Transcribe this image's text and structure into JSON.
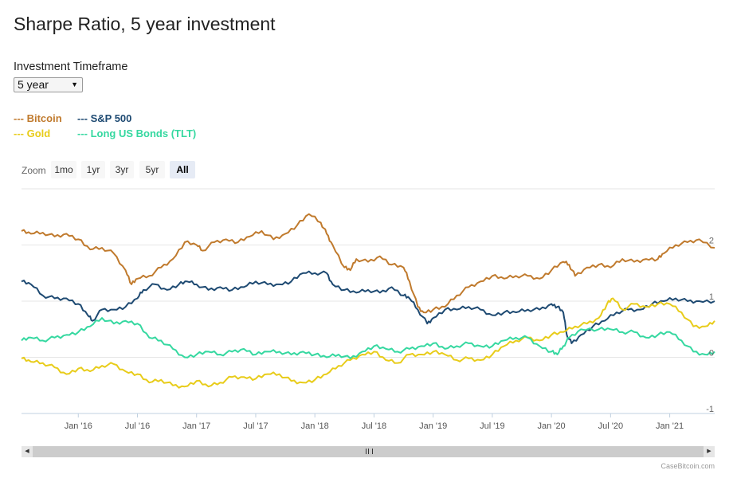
{
  "title": "Sharpe Ratio, 5 year investment",
  "timeframe": {
    "label": "Investment Timeframe",
    "selected": "5 year"
  },
  "legend": [
    {
      "label": "--- Bitcoin",
      "color": "#c07a2d"
    },
    {
      "label": "--- S&P 500",
      "color": "#1e4a72"
    },
    {
      "label": "--- Gold",
      "color": "#e8cc1a"
    },
    {
      "label": "--- Long US Bonds (TLT)",
      "color": "#35d8a0"
    }
  ],
  "zoom": {
    "label": "Zoom",
    "buttons": [
      "1mo",
      "1yr",
      "3yr",
      "5yr",
      "All"
    ],
    "active": "All"
  },
  "credit": "CaseBitcoin.com",
  "chart_data": {
    "type": "line",
    "title": "Sharpe Ratio, 5 year investment",
    "xlabel": "",
    "ylabel": "",
    "xlim": [
      2015.52,
      2021.38
    ],
    "ylim": [
      -1,
      3
    ],
    "y_ticks": [
      -1,
      0,
      1,
      2
    ],
    "x_ticks": [
      {
        "label": "Jan '16",
        "x": 2016.0
      },
      {
        "label": "Jul '16",
        "x": 2016.5
      },
      {
        "label": "Jan '17",
        "x": 2017.0
      },
      {
        "label": "Jul '17",
        "x": 2017.5
      },
      {
        "label": "Jan '18",
        "x": 2018.0
      },
      {
        "label": "Jul '18",
        "x": 2018.5
      },
      {
        "label": "Jan '19",
        "x": 2019.0
      },
      {
        "label": "Jul '19",
        "x": 2019.5
      },
      {
        "label": "Jan '20",
        "x": 2020.0
      },
      {
        "label": "Jul '20",
        "x": 2020.5
      },
      {
        "label": "Jan '21",
        "x": 2021.0
      }
    ],
    "series": [
      {
        "name": "Bitcoin",
        "color": "#c07a2d",
        "points": [
          [
            2015.52,
            2.25
          ],
          [
            2015.6,
            2.2
          ],
          [
            2015.7,
            2.22
          ],
          [
            2015.8,
            2.15
          ],
          [
            2015.9,
            2.2
          ],
          [
            2016.0,
            2.1
          ],
          [
            2016.1,
            1.92
          ],
          [
            2016.2,
            1.95
          ],
          [
            2016.3,
            1.85
          ],
          [
            2016.4,
            1.55
          ],
          [
            2016.45,
            1.3
          ],
          [
            2016.5,
            1.4
          ],
          [
            2016.6,
            1.45
          ],
          [
            2016.7,
            1.6
          ],
          [
            2016.8,
            1.75
          ],
          [
            2016.9,
            2.05
          ],
          [
            2017.0,
            2.0
          ],
          [
            2017.05,
            1.9
          ],
          [
            2017.15,
            2.05
          ],
          [
            2017.25,
            2.1
          ],
          [
            2017.35,
            2.05
          ],
          [
            2017.45,
            2.15
          ],
          [
            2017.55,
            2.25
          ],
          [
            2017.65,
            2.1
          ],
          [
            2017.75,
            2.2
          ],
          [
            2017.85,
            2.35
          ],
          [
            2017.95,
            2.55
          ],
          [
            2018.05,
            2.4
          ],
          [
            2018.1,
            2.2
          ],
          [
            2018.15,
            2.0
          ],
          [
            2018.25,
            1.6
          ],
          [
            2018.3,
            1.55
          ],
          [
            2018.35,
            1.75
          ],
          [
            2018.45,
            1.7
          ],
          [
            2018.55,
            1.8
          ],
          [
            2018.65,
            1.65
          ],
          [
            2018.75,
            1.6
          ],
          [
            2018.8,
            1.35
          ],
          [
            2018.87,
            0.9
          ],
          [
            2018.92,
            0.8
          ],
          [
            2019.0,
            0.85
          ],
          [
            2019.1,
            0.9
          ],
          [
            2019.2,
            1.1
          ],
          [
            2019.3,
            1.25
          ],
          [
            2019.4,
            1.35
          ],
          [
            2019.5,
            1.45
          ],
          [
            2019.6,
            1.4
          ],
          [
            2019.7,
            1.45
          ],
          [
            2019.8,
            1.45
          ],
          [
            2019.9,
            1.4
          ],
          [
            2020.0,
            1.55
          ],
          [
            2020.1,
            1.7
          ],
          [
            2020.15,
            1.65
          ],
          [
            2020.2,
            1.45
          ],
          [
            2020.3,
            1.6
          ],
          [
            2020.4,
            1.65
          ],
          [
            2020.5,
            1.6
          ],
          [
            2020.6,
            1.75
          ],
          [
            2020.7,
            1.7
          ],
          [
            2020.8,
            1.75
          ],
          [
            2020.9,
            1.75
          ],
          [
            2020.95,
            1.85
          ],
          [
            2021.05,
            2.0
          ],
          [
            2021.15,
            2.05
          ],
          [
            2021.25,
            2.1
          ],
          [
            2021.38,
            1.95
          ]
        ]
      },
      {
        "name": "S&P 500",
        "color": "#1e4a72",
        "points": [
          [
            2015.52,
            1.35
          ],
          [
            2015.6,
            1.3
          ],
          [
            2015.7,
            1.1
          ],
          [
            2015.8,
            1.05
          ],
          [
            2015.9,
            1.05
          ],
          [
            2016.0,
            0.95
          ],
          [
            2016.08,
            0.75
          ],
          [
            2016.12,
            0.65
          ],
          [
            2016.2,
            0.85
          ],
          [
            2016.3,
            0.85
          ],
          [
            2016.4,
            0.9
          ],
          [
            2016.5,
            1.05
          ],
          [
            2016.55,
            1.2
          ],
          [
            2016.65,
            1.3
          ],
          [
            2016.75,
            1.2
          ],
          [
            2016.85,
            1.3
          ],
          [
            2016.92,
            1.35
          ],
          [
            2017.0,
            1.3
          ],
          [
            2017.1,
            1.2
          ],
          [
            2017.2,
            1.25
          ],
          [
            2017.3,
            1.2
          ],
          [
            2017.4,
            1.25
          ],
          [
            2017.5,
            1.35
          ],
          [
            2017.6,
            1.3
          ],
          [
            2017.7,
            1.3
          ],
          [
            2017.8,
            1.35
          ],
          [
            2017.9,
            1.5
          ],
          [
            2018.0,
            1.5
          ],
          [
            2018.1,
            1.5
          ],
          [
            2018.15,
            1.3
          ],
          [
            2018.25,
            1.2
          ],
          [
            2018.35,
            1.15
          ],
          [
            2018.45,
            1.2
          ],
          [
            2018.55,
            1.15
          ],
          [
            2018.65,
            1.25
          ],
          [
            2018.75,
            1.1
          ],
          [
            2018.8,
            1.05
          ],
          [
            2018.87,
            0.85
          ],
          [
            2018.95,
            0.6
          ],
          [
            2019.0,
            0.7
          ],
          [
            2019.1,
            0.85
          ],
          [
            2019.2,
            0.85
          ],
          [
            2019.3,
            0.9
          ],
          [
            2019.4,
            0.85
          ],
          [
            2019.5,
            0.75
          ],
          [
            2019.6,
            0.8
          ],
          [
            2019.7,
            0.8
          ],
          [
            2019.8,
            0.85
          ],
          [
            2019.9,
            0.85
          ],
          [
            2020.0,
            0.95
          ],
          [
            2020.05,
            0.9
          ],
          [
            2020.1,
            0.8
          ],
          [
            2020.13,
            0.4
          ],
          [
            2020.17,
            0.25
          ],
          [
            2020.25,
            0.4
          ],
          [
            2020.35,
            0.55
          ],
          [
            2020.45,
            0.65
          ],
          [
            2020.55,
            0.8
          ],
          [
            2020.65,
            0.85
          ],
          [
            2020.75,
            0.85
          ],
          [
            2020.85,
            0.95
          ],
          [
            2020.95,
            1.0
          ],
          [
            2021.05,
            1.05
          ],
          [
            2021.15,
            1.0
          ],
          [
            2021.25,
            1.0
          ],
          [
            2021.38,
            1.0
          ]
        ]
      },
      {
        "name": "Gold",
        "color": "#e8cc1a",
        "points": [
          [
            2015.52,
            -0.02
          ],
          [
            2015.6,
            -0.08
          ],
          [
            2015.7,
            -0.1
          ],
          [
            2015.8,
            -0.18
          ],
          [
            2015.9,
            -0.3
          ],
          [
            2016.0,
            -0.2
          ],
          [
            2016.1,
            -0.25
          ],
          [
            2016.2,
            -0.15
          ],
          [
            2016.3,
            -0.12
          ],
          [
            2016.4,
            -0.25
          ],
          [
            2016.5,
            -0.3
          ],
          [
            2016.6,
            -0.45
          ],
          [
            2016.7,
            -0.4
          ],
          [
            2016.8,
            -0.5
          ],
          [
            2016.9,
            -0.52
          ],
          [
            2017.0,
            -0.42
          ],
          [
            2017.1,
            -0.52
          ],
          [
            2017.2,
            -0.45
          ],
          [
            2017.3,
            -0.35
          ],
          [
            2017.4,
            -0.35
          ],
          [
            2017.5,
            -0.38
          ],
          [
            2017.6,
            -0.3
          ],
          [
            2017.7,
            -0.3
          ],
          [
            2017.8,
            -0.42
          ],
          [
            2017.9,
            -0.45
          ],
          [
            2018.0,
            -0.4
          ],
          [
            2018.1,
            -0.3
          ],
          [
            2018.2,
            -0.15
          ],
          [
            2018.3,
            -0.05
          ],
          [
            2018.4,
            0.05
          ],
          [
            2018.5,
            0.1
          ],
          [
            2018.6,
            -0.05
          ],
          [
            2018.7,
            -0.1
          ],
          [
            2018.8,
            0.05
          ],
          [
            2018.9,
            0.05
          ],
          [
            2019.0,
            0.1
          ],
          [
            2019.1,
            0.05
          ],
          [
            2019.2,
            -0.05
          ],
          [
            2019.3,
            -0.02
          ],
          [
            2019.4,
            -0.05
          ],
          [
            2019.5,
            0.05
          ],
          [
            2019.6,
            0.2
          ],
          [
            2019.7,
            0.3
          ],
          [
            2019.8,
            0.35
          ],
          [
            2019.9,
            0.3
          ],
          [
            2020.0,
            0.4
          ],
          [
            2020.1,
            0.45
          ],
          [
            2020.2,
            0.55
          ],
          [
            2020.3,
            0.6
          ],
          [
            2020.4,
            0.7
          ],
          [
            2020.47,
            0.95
          ],
          [
            2020.52,
            1.05
          ],
          [
            2020.6,
            0.85
          ],
          [
            2020.7,
            0.95
          ],
          [
            2020.8,
            0.9
          ],
          [
            2020.9,
            0.95
          ],
          [
            2021.0,
            0.95
          ],
          [
            2021.1,
            0.8
          ],
          [
            2021.2,
            0.55
          ],
          [
            2021.3,
            0.55
          ],
          [
            2021.38,
            0.65
          ]
        ]
      },
      {
        "name": "Long US Bonds (TLT)",
        "color": "#35d8a0",
        "points": [
          [
            2015.52,
            0.3
          ],
          [
            2015.6,
            0.35
          ],
          [
            2015.7,
            0.3
          ],
          [
            2015.8,
            0.35
          ],
          [
            2015.9,
            0.4
          ],
          [
            2016.0,
            0.45
          ],
          [
            2016.1,
            0.55
          ],
          [
            2016.2,
            0.7
          ],
          [
            2016.3,
            0.6
          ],
          [
            2016.4,
            0.65
          ],
          [
            2016.5,
            0.6
          ],
          [
            2016.6,
            0.35
          ],
          [
            2016.7,
            0.3
          ],
          [
            2016.8,
            0.15
          ],
          [
            2016.9,
            0.0
          ],
          [
            2017.0,
            0.05
          ],
          [
            2017.1,
            0.1
          ],
          [
            2017.2,
            0.05
          ],
          [
            2017.3,
            0.1
          ],
          [
            2017.4,
            0.15
          ],
          [
            2017.5,
            0.05
          ],
          [
            2017.6,
            0.1
          ],
          [
            2017.7,
            0.1
          ],
          [
            2017.8,
            0.05
          ],
          [
            2017.9,
            0.1
          ],
          [
            2018.0,
            0.05
          ],
          [
            2018.1,
            0.0
          ],
          [
            2018.2,
            0.05
          ],
          [
            2018.3,
            -0.02
          ],
          [
            2018.4,
            0.1
          ],
          [
            2018.5,
            0.2
          ],
          [
            2018.6,
            0.15
          ],
          [
            2018.7,
            0.1
          ],
          [
            2018.8,
            0.15
          ],
          [
            2018.9,
            0.2
          ],
          [
            2019.0,
            0.25
          ],
          [
            2019.1,
            0.15
          ],
          [
            2019.2,
            0.2
          ],
          [
            2019.3,
            0.25
          ],
          [
            2019.4,
            0.2
          ],
          [
            2019.5,
            0.2
          ],
          [
            2019.6,
            0.3
          ],
          [
            2019.7,
            0.35
          ],
          [
            2019.8,
            0.35
          ],
          [
            2019.9,
            0.2
          ],
          [
            2020.0,
            0.1
          ],
          [
            2020.05,
            0.05
          ],
          [
            2020.1,
            0.2
          ],
          [
            2020.15,
            0.35
          ],
          [
            2020.25,
            0.5
          ],
          [
            2020.4,
            0.5
          ],
          [
            2020.5,
            0.5
          ],
          [
            2020.6,
            0.45
          ],
          [
            2020.7,
            0.45
          ],
          [
            2020.8,
            0.35
          ],
          [
            2020.9,
            0.4
          ],
          [
            2021.0,
            0.45
          ],
          [
            2021.1,
            0.3
          ],
          [
            2021.2,
            0.1
          ],
          [
            2021.3,
            0.05
          ],
          [
            2021.38,
            0.1
          ]
        ]
      }
    ]
  }
}
